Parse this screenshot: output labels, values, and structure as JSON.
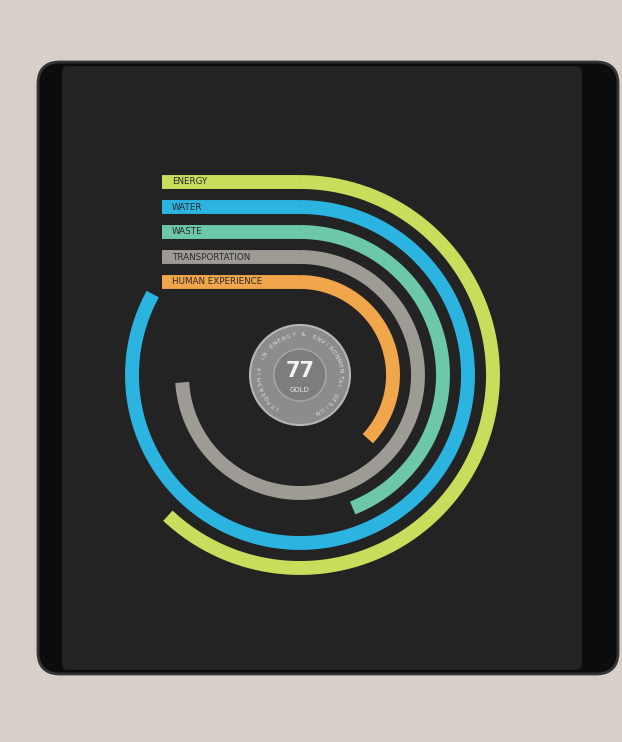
{
  "chart_data": {
    "type": "radial_bar",
    "categories": [
      "ENERGY",
      "WATER",
      "WASTE",
      "TRANSPORTATION",
      "HUMAN EXPERIENCE"
    ],
    "values": [
      62,
      83,
      44,
      74,
      37
    ],
    "colors": [
      "#c9dc5c",
      "#2bb4e0",
      "#6cc7ab",
      "#9e9b95",
      "#f2a64b"
    ],
    "ylim": [
      0,
      100
    ],
    "score": 77,
    "score_label": "GOLD",
    "badge_text": "LEADERSHIP IN ENERGY & ENVIRONMENTAL DESIGN"
  }
}
